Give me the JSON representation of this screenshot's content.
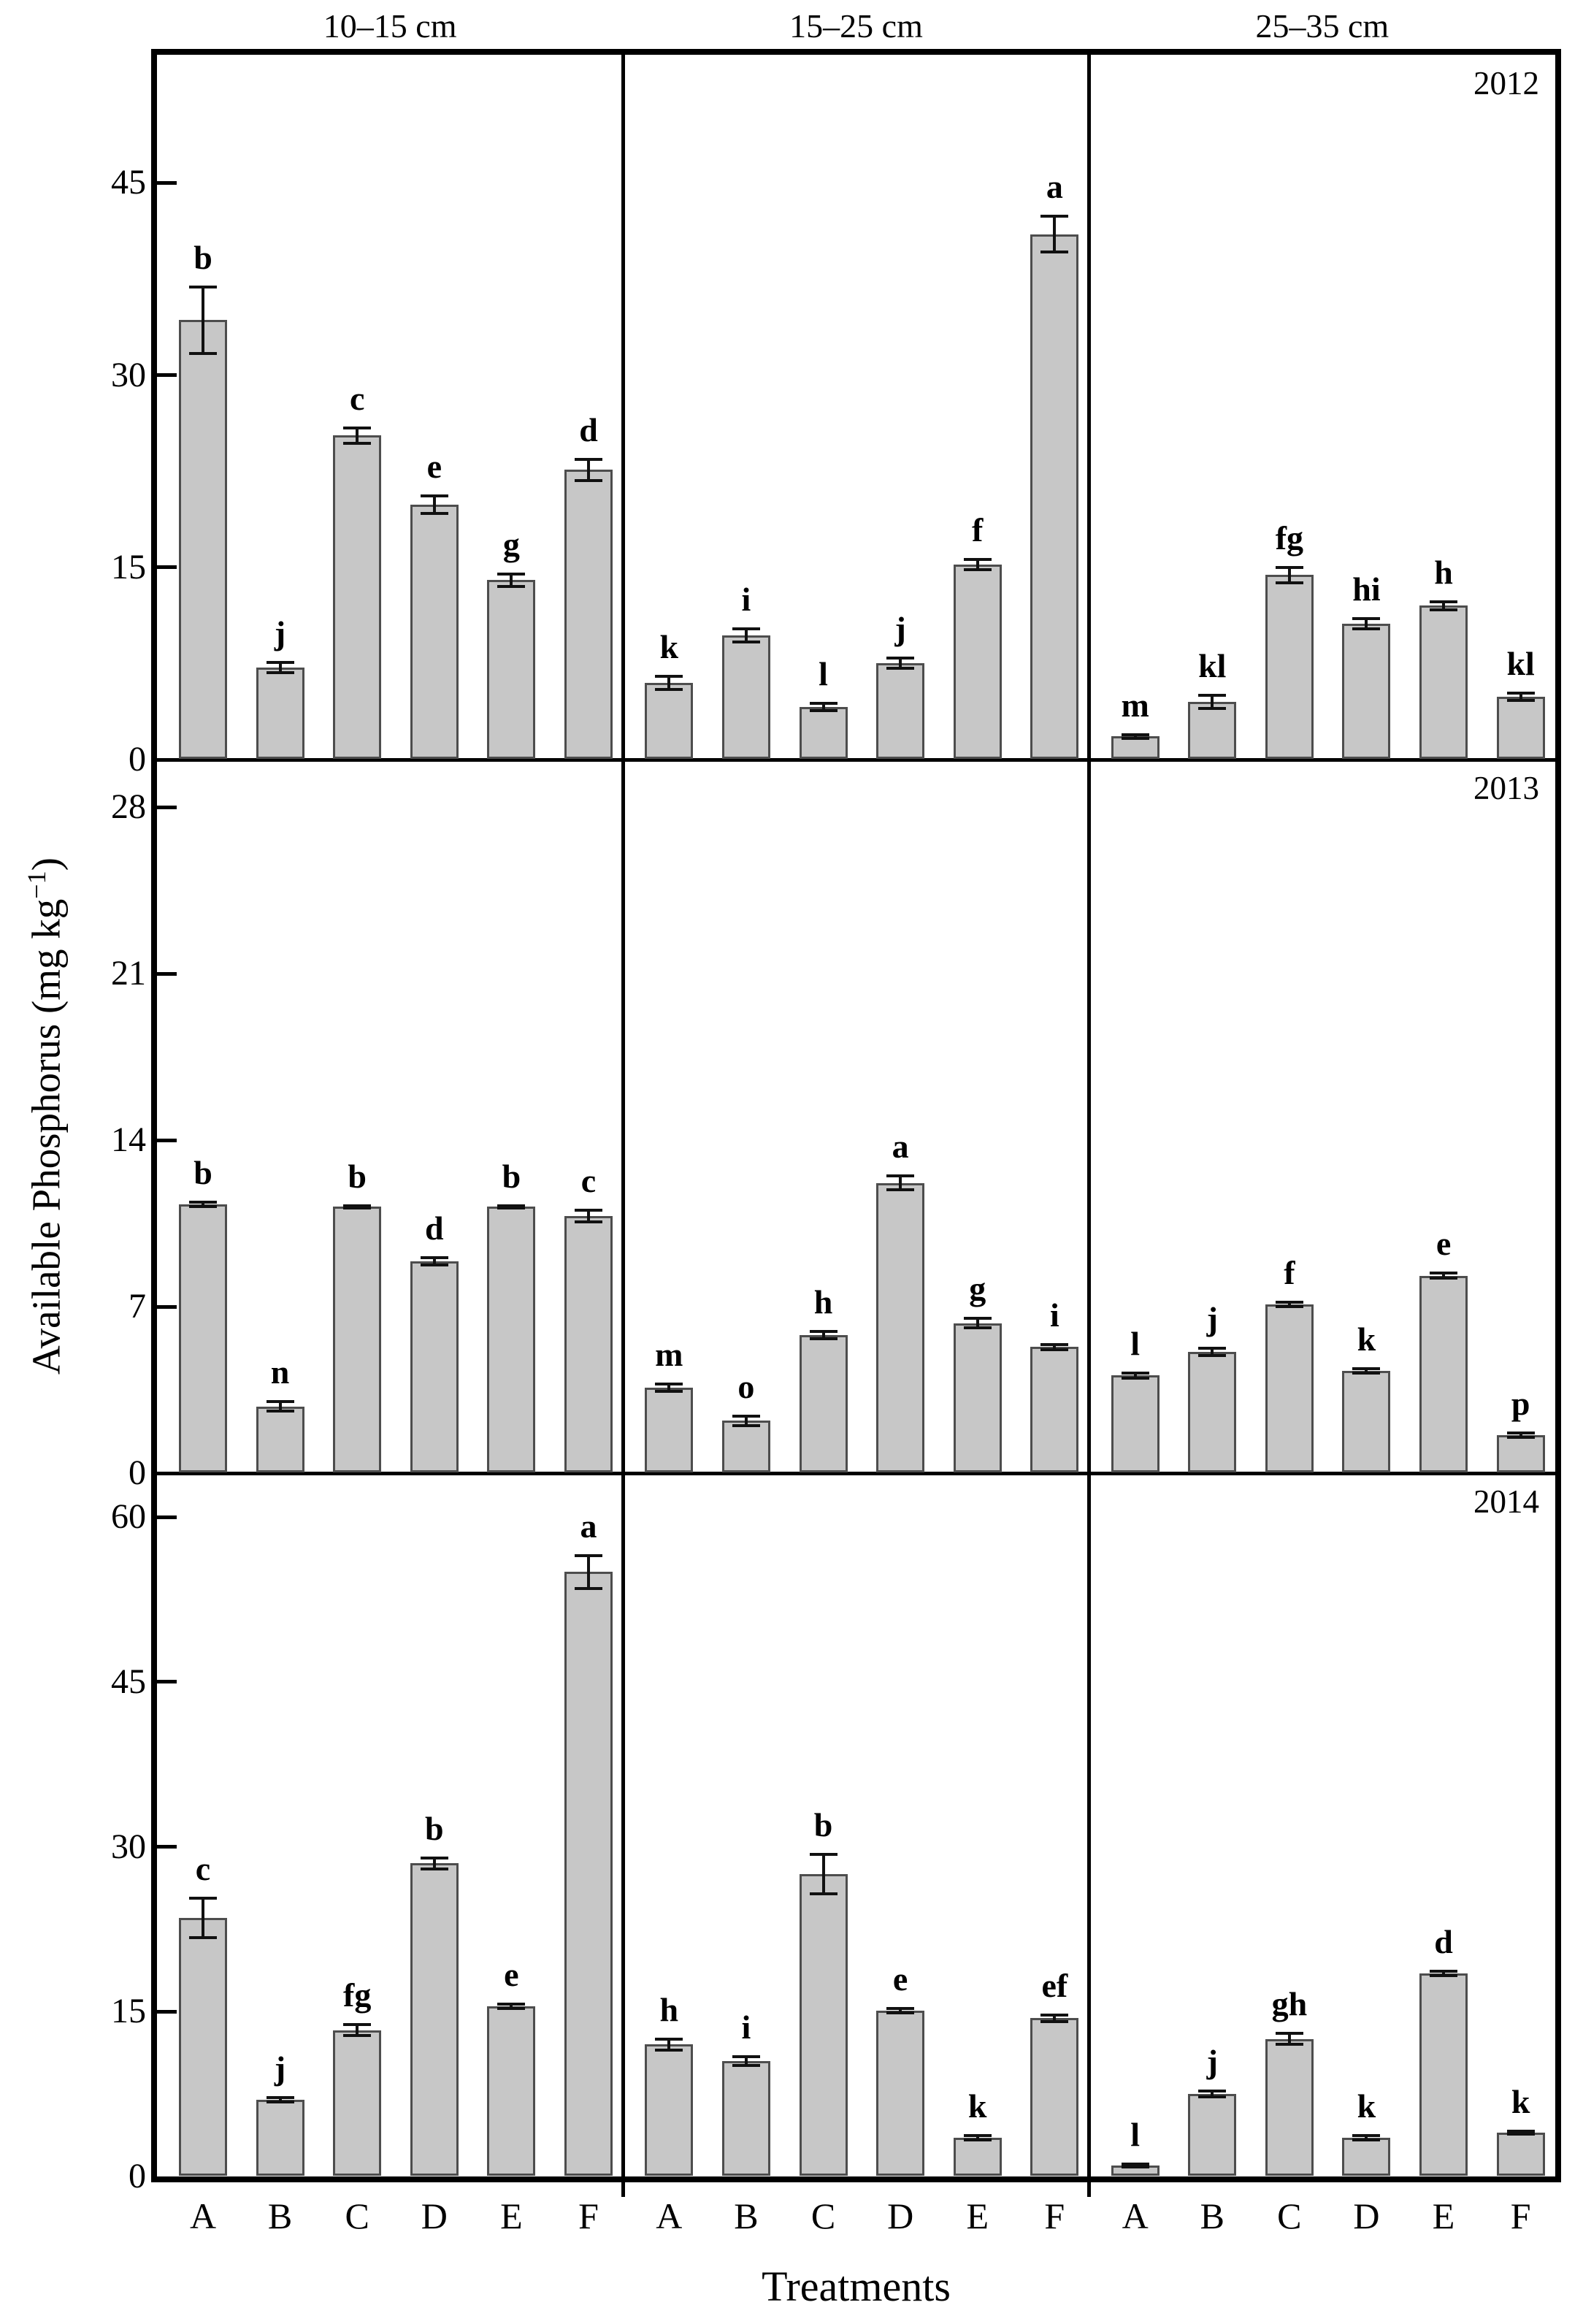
{
  "figure": {
    "xlabel": "Treatments",
    "ylabel_main": "Available Phosphorus (mg kg",
    "ylabel_sup": "−1",
    "ylabel_end": ")",
    "bar_fill": "#c7c7c7",
    "bar_stroke": "#4d4d4d",
    "axis_color": "#000000",
    "background": "#ffffff"
  },
  "chart_data": {
    "type": "bar",
    "title": "",
    "xlabel": "Treatments",
    "ylabel": "Available Phosphorus (mg kg−1)",
    "grid": "off",
    "legend": "none",
    "categories": [
      "A",
      "B",
      "C",
      "D",
      "E",
      "F"
    ],
    "columns": [
      "10–15 cm",
      "15–25 cm",
      "25–35 cm"
    ],
    "rows": [
      {
        "year": "2012",
        "ylim": [
          0,
          55
        ],
        "yticks": [
          0,
          15,
          30,
          45
        ],
        "panels": [
          {
            "depth": "10–15 cm",
            "values": [
              34.3,
              7.2,
              25.3,
              19.9,
              14.0,
              22.6
            ],
            "errors": [
              2.6,
              0.4,
              0.6,
              0.7,
              0.5,
              0.8
            ],
            "letters": [
              "b",
              "j",
              "c",
              "e",
              "g",
              "d"
            ]
          },
          {
            "depth": "15–25 cm",
            "values": [
              6.0,
              9.7,
              4.1,
              7.5,
              15.2,
              41.0
            ],
            "errors": [
              0.5,
              0.5,
              0.3,
              0.4,
              0.4,
              1.4
            ],
            "letters": [
              "k",
              "i",
              "l",
              "j",
              "f",
              "a"
            ]
          },
          {
            "depth": "25–35 cm",
            "values": [
              1.8,
              4.5,
              14.4,
              10.6,
              12.0,
              4.9
            ],
            "errors": [
              0.15,
              0.5,
              0.6,
              0.4,
              0.3,
              0.3
            ],
            "letters": [
              "m",
              "kl",
              "fg",
              "hi",
              "h",
              "kl"
            ]
          }
        ]
      },
      {
        "year": "2013",
        "ylim": [
          0,
          30
        ],
        "yticks": [
          0,
          7,
          14,
          21,
          28
        ],
        "panels": [
          {
            "depth": "10–15 cm",
            "values": [
              11.3,
              2.8,
              11.2,
              8.9,
              11.2,
              10.8
            ],
            "errors": [
              0.1,
              0.2,
              0.05,
              0.15,
              0.05,
              0.25
            ],
            "letters": [
              "b",
              "n",
              "b",
              "d",
              "b",
              "c"
            ]
          },
          {
            "depth": "15–25 cm",
            "values": [
              3.6,
              2.2,
              5.8,
              12.2,
              6.3,
              5.3
            ],
            "errors": [
              0.15,
              0.2,
              0.15,
              0.3,
              0.2,
              0.1
            ],
            "letters": [
              "m",
              "o",
              "h",
              "a",
              "g",
              "i"
            ]
          },
          {
            "depth": "25–35 cm",
            "values": [
              4.1,
              5.1,
              7.1,
              4.3,
              8.3,
              1.6
            ],
            "errors": [
              0.1,
              0.15,
              0.1,
              0.1,
              0.1,
              0.1
            ],
            "letters": [
              "l",
              "j",
              "f",
              "k",
              "e",
              "p"
            ]
          }
        ]
      },
      {
        "year": "2014",
        "ylim": [
          0,
          64
        ],
        "yticks": [
          0,
          15,
          30,
          45,
          60
        ],
        "panels": [
          {
            "depth": "10–15 cm",
            "values": [
              23.5,
              7.0,
              13.3,
              28.5,
              15.5,
              55.0
            ],
            "errors": [
              1.8,
              0.2,
              0.5,
              0.5,
              0.2,
              1.5
            ],
            "letters": [
              "c",
              "j",
              "fg",
              "b",
              "e",
              "a"
            ]
          },
          {
            "depth": "15–25 cm",
            "values": [
              12.0,
              10.5,
              27.5,
              15.1,
              3.5,
              14.4
            ],
            "errors": [
              0.5,
              0.4,
              1.8,
              0.2,
              0.2,
              0.3
            ],
            "letters": [
              "h",
              "i",
              "b",
              "e",
              "k",
              "ef"
            ]
          },
          {
            "depth": "25–35 cm",
            "values": [
              1.0,
              7.5,
              12.5,
              3.5,
              18.5,
              4.0
            ],
            "errors": [
              0.15,
              0.25,
              0.5,
              0.2,
              0.2,
              0.15
            ],
            "letters": [
              "l",
              "j",
              "gh",
              "k",
              "d",
              "k"
            ]
          }
        ]
      }
    ]
  }
}
